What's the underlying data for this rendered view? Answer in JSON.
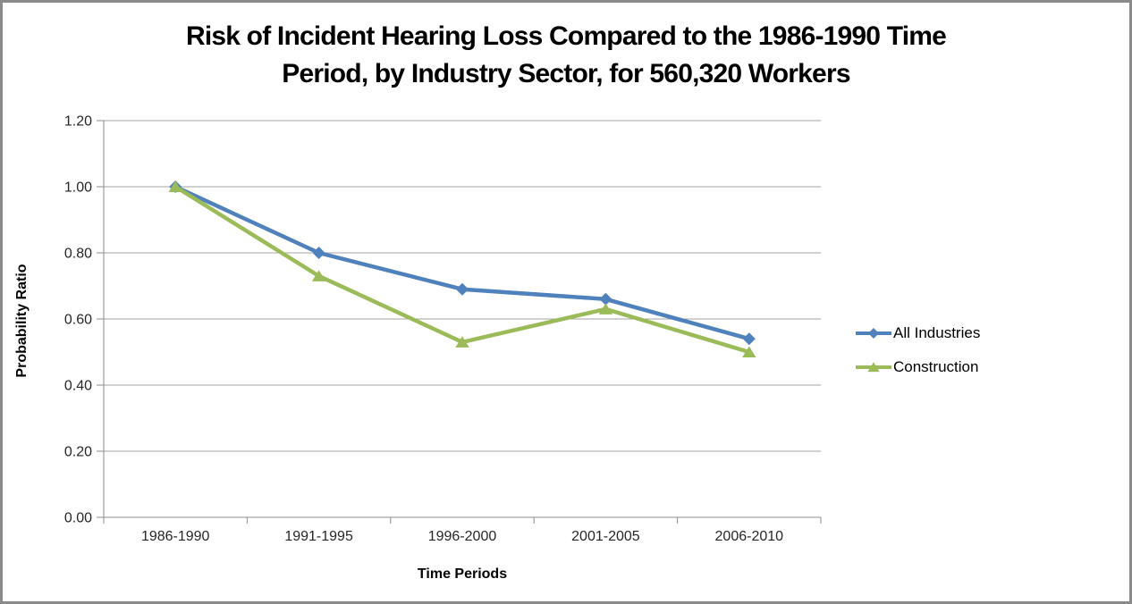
{
  "window": {
    "background": "#ffffff",
    "border_color": "#8a8a8a"
  },
  "chart_data": {
    "type": "line",
    "title": "Risk of Incident Hearing Loss Compared to the 1986-1990 Time Period, by Industry Sector, for 560,320 Workers",
    "title_lines": [
      "Risk of Incident Hearing Loss Compared to the 1986-1990 Time",
      "Period, by Industry Sector, for 560,320 Workers"
    ],
    "xlabel": "Time Periods",
    "ylabel": "Probability Ratio",
    "categories": [
      "1986-1990",
      "1991-1995",
      "1996-2000",
      "2001-2005",
      "2006-2010"
    ],
    "series": [
      {
        "name": "All Industries",
        "color": "#4F81BD",
        "marker": "diamond",
        "values": [
          1.0,
          0.8,
          0.69,
          0.66,
          0.54
        ]
      },
      {
        "name": "Construction",
        "color": "#9BBB59",
        "marker": "triangle",
        "values": [
          1.0,
          0.73,
          0.53,
          0.63,
          0.5
        ]
      }
    ],
    "ylim": [
      0,
      1.2
    ],
    "ytick_step": 0.2,
    "ytick_labels": [
      "0.00",
      "0.20",
      "0.40",
      "0.60",
      "0.80",
      "1.00",
      "1.20"
    ],
    "grid": true,
    "legend_position": "right",
    "gridline_color": "#A3A3A3",
    "axis_color": "#8C8C8C",
    "text_color": "#262626"
  }
}
